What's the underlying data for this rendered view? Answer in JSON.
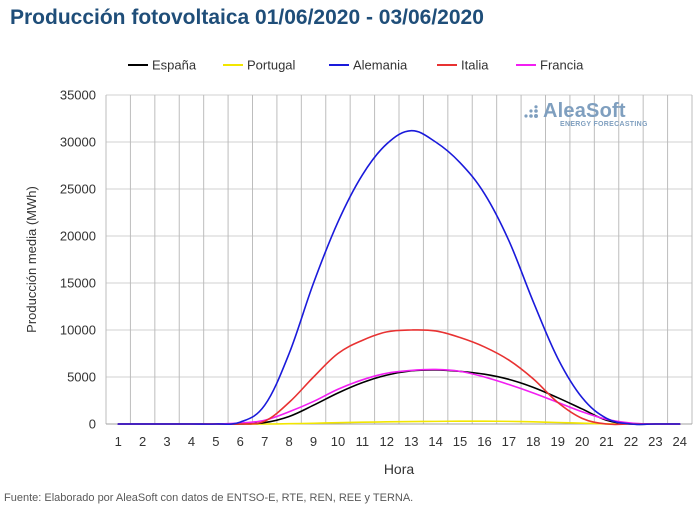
{
  "title": "Producción fotovoltaica 01/06/2020 - 03/06/2020",
  "footer": "Fuente: Elaborado por AleaSoft con datos de ENTSO-E, RTE, REN, REE y TERNA.",
  "logo": {
    "name": "AleaSoft",
    "tagline": "ENERGY FORECASTING"
  },
  "chart_data": {
    "type": "line",
    "title": "Producción fotovoltaica 01/06/2020 - 03/06/2020",
    "xlabel": "Hora",
    "ylabel": "Producción media (MWh)",
    "x": [
      1,
      2,
      3,
      4,
      5,
      6,
      7,
      8,
      9,
      10,
      11,
      12,
      13,
      14,
      15,
      16,
      17,
      18,
      19,
      20,
      21,
      22,
      23,
      24
    ],
    "ylim": [
      0,
      35000
    ],
    "yticks": [
      0,
      5000,
      10000,
      15000,
      20000,
      25000,
      30000,
      35000
    ],
    "grid": true,
    "legend_position": "top",
    "series": [
      {
        "name": "España",
        "color": "#000000",
        "values": [
          0,
          0,
          0,
          0,
          0,
          0,
          150,
          800,
          2000,
          3300,
          4400,
          5200,
          5650,
          5750,
          5600,
          5300,
          4750,
          3900,
          2800,
          1600,
          400,
          0,
          0,
          0
        ]
      },
      {
        "name": "Portugal",
        "color": "#f2e600",
        "values": [
          0,
          0,
          0,
          0,
          0,
          0,
          0,
          30,
          80,
          140,
          190,
          230,
          260,
          280,
          300,
          300,
          280,
          230,
          160,
          90,
          20,
          0,
          0,
          0
        ]
      },
      {
        "name": "Alemania",
        "color": "#1a1adb",
        "values": [
          0,
          0,
          0,
          0,
          0,
          200,
          2000,
          7500,
          15000,
          21500,
          26500,
          29800,
          31200,
          30000,
          27800,
          24500,
          19500,
          13000,
          7000,
          2800,
          600,
          0,
          0,
          0
        ]
      },
      {
        "name": "Italia",
        "color": "#e83232",
        "values": [
          0,
          0,
          0,
          0,
          0,
          0,
          300,
          2300,
          5000,
          7500,
          8900,
          9800,
          10000,
          9900,
          9200,
          8200,
          6800,
          4800,
          2300,
          600,
          0,
          0,
          0,
          0
        ]
      },
      {
        "name": "Francia",
        "color": "#f21ff2",
        "values": [
          0,
          0,
          0,
          0,
          0,
          100,
          400,
          1300,
          2400,
          3700,
          4700,
          5400,
          5700,
          5800,
          5600,
          5000,
          4200,
          3300,
          2300,
          1300,
          500,
          100,
          0,
          0
        ]
      }
    ]
  }
}
